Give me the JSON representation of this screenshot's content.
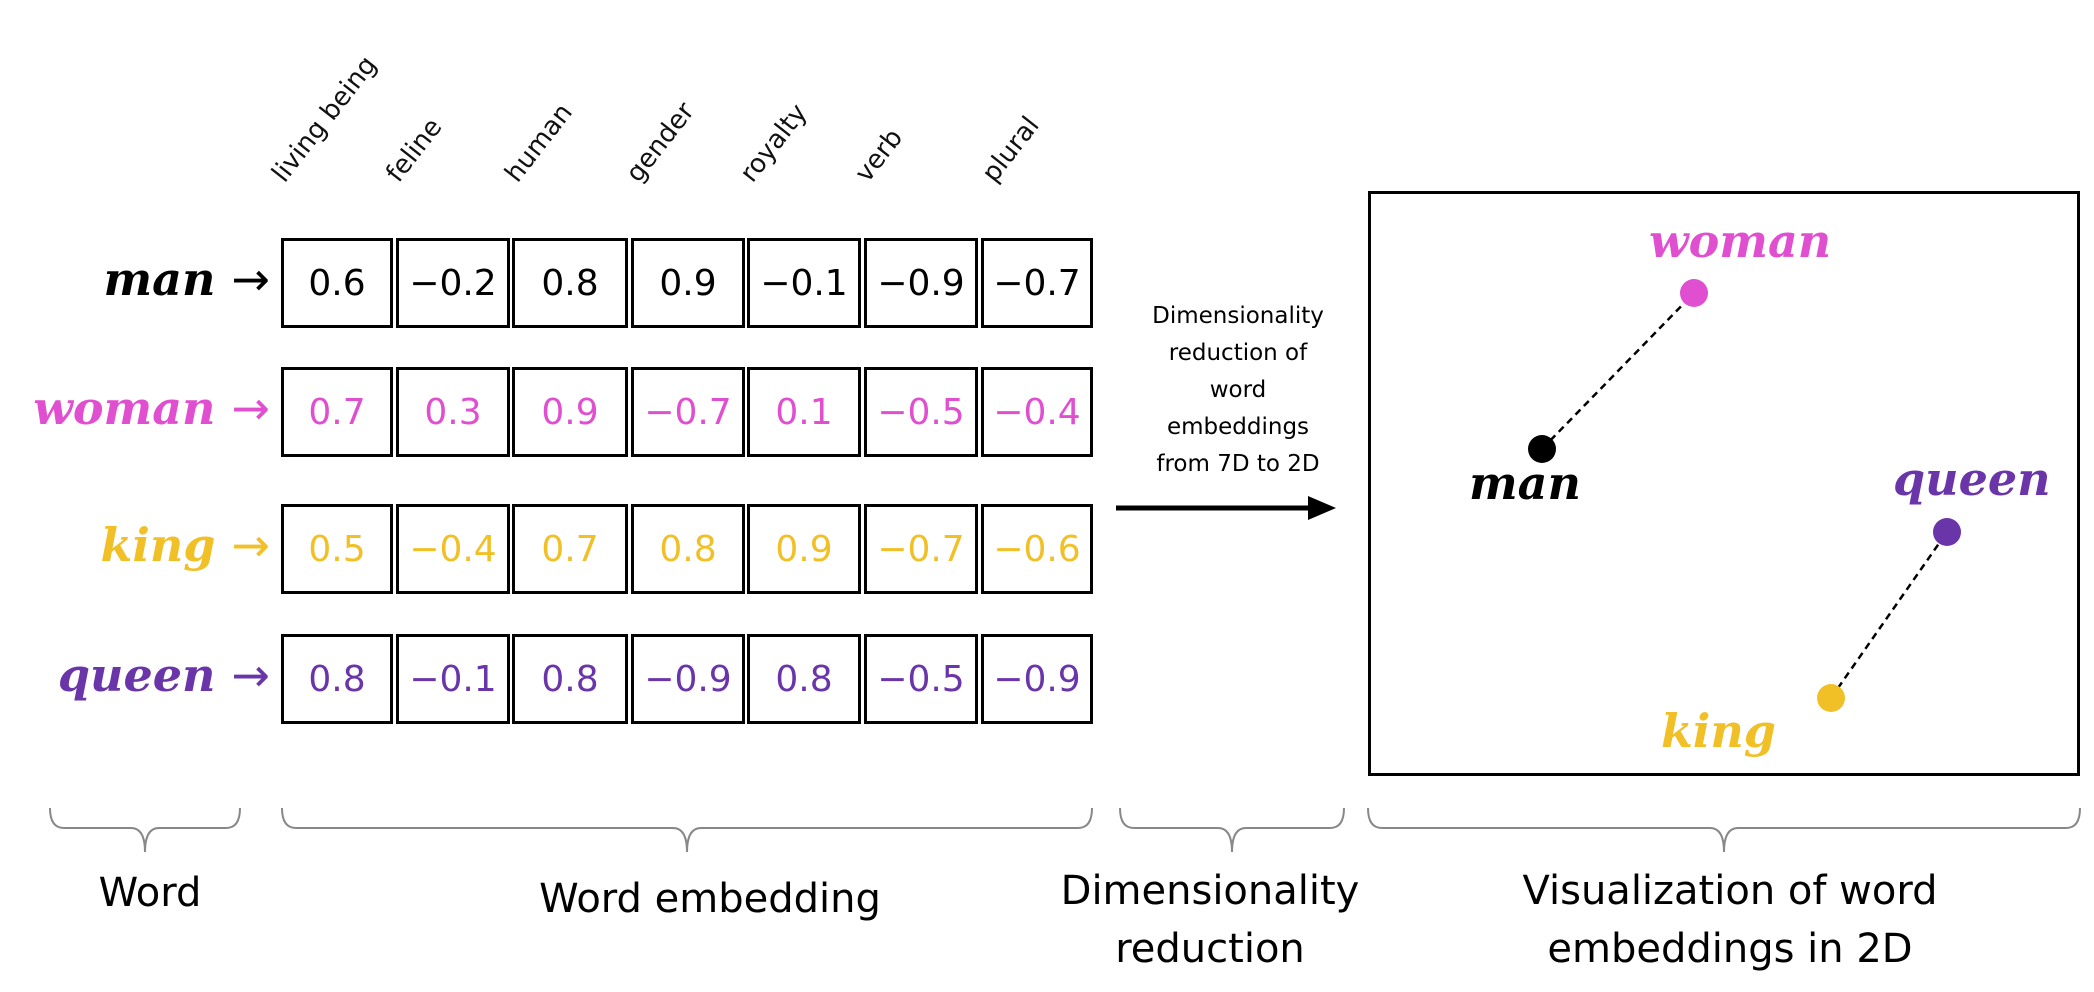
{
  "dimensions": [
    "living being",
    "feline",
    "human",
    "gender",
    "royalty",
    "verb",
    "plural"
  ],
  "rows": [
    {
      "word": "man",
      "arrow": "→",
      "color": "#000000",
      "values": [
        "0.6",
        "−0.2",
        "0.8",
        "0.9",
        "−0.1",
        "−0.9",
        "−0.7"
      ]
    },
    {
      "word": "woman",
      "arrow": "→",
      "color": "#e04fd0",
      "values": [
        "0.7",
        "0.3",
        "0.9",
        "−0.7",
        "0.1",
        "−0.5",
        "−0.4"
      ]
    },
    {
      "word": "king",
      "arrow": "→",
      "color": "#f0c026",
      "values": [
        "0.5",
        "−0.4",
        "0.7",
        "0.8",
        "0.9",
        "−0.7",
        "−0.6"
      ]
    },
    {
      "word": "queen",
      "arrow": "→",
      "color": "#6a35a8",
      "values": [
        "0.8",
        "−0.1",
        "0.8",
        "−0.9",
        "0.8",
        "−0.5",
        "−0.9"
      ]
    }
  ],
  "reduction": {
    "lines": [
      "Dimensionality",
      "reduction of",
      "word",
      "embeddings",
      "from 7D to 2D"
    ]
  },
  "plot": {
    "points": [
      {
        "label": "woman",
        "color": "#e04fd0"
      },
      {
        "label": "man",
        "color": "#000000"
      },
      {
        "label": "queen",
        "color": "#6a35a8"
      },
      {
        "label": "king",
        "color": "#f0c026"
      }
    ],
    "pairs": [
      [
        "man",
        "woman"
      ],
      [
        "king",
        "queen"
      ]
    ]
  },
  "sections": {
    "word": "Word",
    "embedding": "Word embedding",
    "reduction_line1": "Dimensionality",
    "reduction_line2": "reduction",
    "visualization_line1": "Visualization of word",
    "visualization_line2": "embeddings  in 2D"
  }
}
